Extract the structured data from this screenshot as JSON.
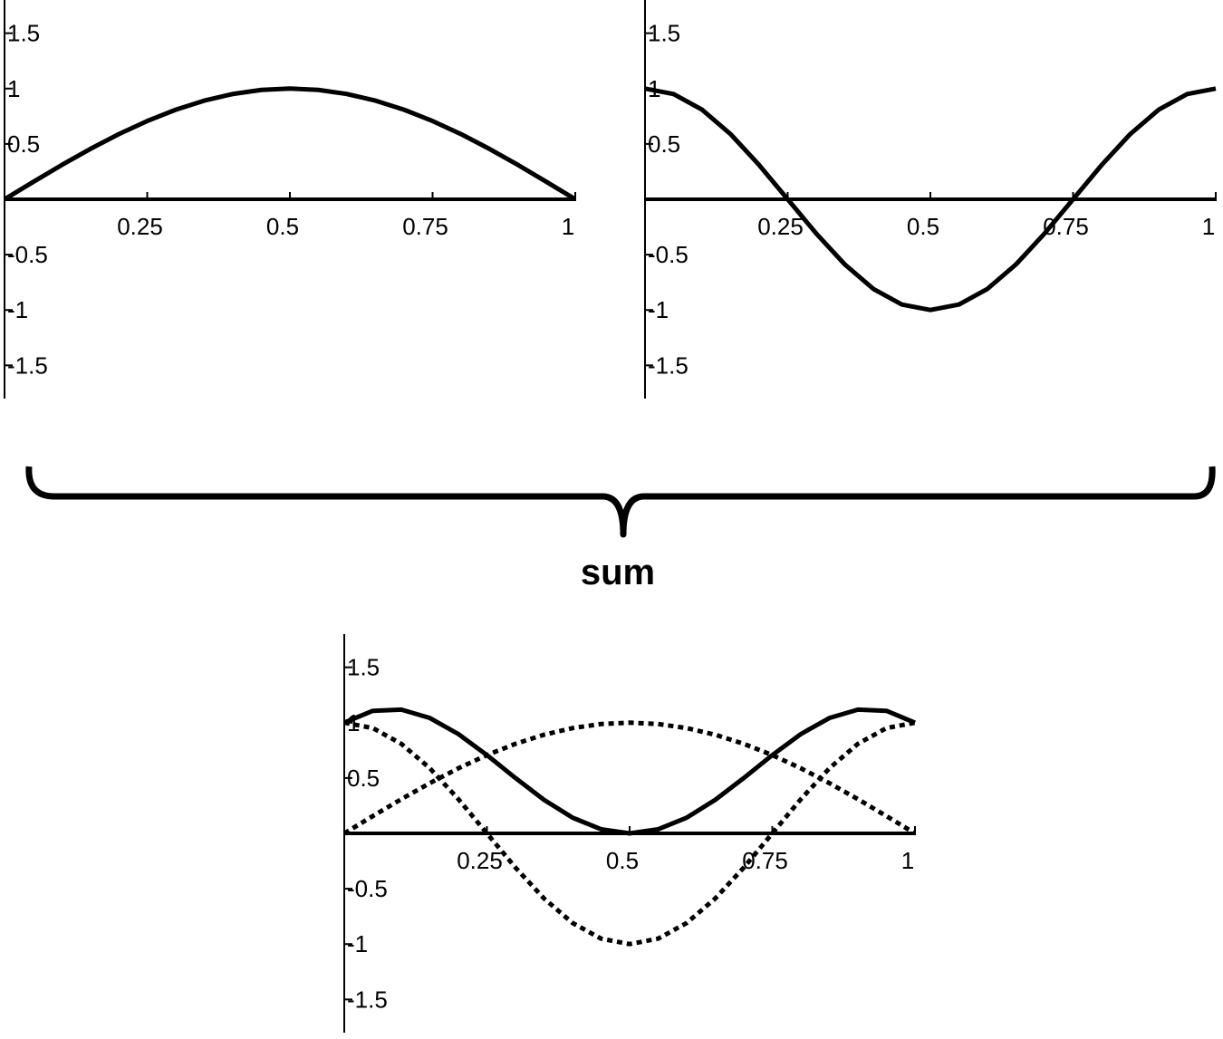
{
  "chart_data": [
    {
      "type": "line",
      "x": [
        0,
        0.05,
        0.1,
        0.15,
        0.2,
        0.25,
        0.3,
        0.35,
        0.4,
        0.45,
        0.5,
        0.55,
        0.6,
        0.65,
        0.7,
        0.75,
        0.8,
        0.85,
        0.9,
        0.95,
        1
      ],
      "series": [
        {
          "color": "#000000",
          "line_style": "solid",
          "values": [
            0,
            0.156,
            0.309,
            0.454,
            0.588,
            0.707,
            0.809,
            0.891,
            0.951,
            0.988,
            1,
            0.988,
            0.951,
            0.891,
            0.809,
            0.707,
            0.588,
            0.454,
            0.309,
            0.156,
            0
          ]
        }
      ],
      "xlim": [
        0,
        1
      ],
      "ylim": [
        -1.8,
        1.8
      ],
      "xticks": [
        0.25,
        0.5,
        0.75,
        1
      ],
      "yticks": [
        -1.5,
        -1,
        -0.5,
        0.5,
        1,
        1.5
      ]
    },
    {
      "type": "line",
      "x": [
        0,
        0.05,
        0.1,
        0.15,
        0.2,
        0.25,
        0.3,
        0.35,
        0.4,
        0.45,
        0.5,
        0.55,
        0.6,
        0.65,
        0.7,
        0.75,
        0.8,
        0.85,
        0.9,
        0.95,
        1
      ],
      "series": [
        {
          "color": "#000000",
          "line_style": "solid",
          "values": [
            1,
            0.951,
            0.809,
            0.588,
            0.309,
            0,
            -0.309,
            -0.588,
            -0.809,
            -0.951,
            -1,
            -0.951,
            -0.809,
            -0.588,
            -0.309,
            0,
            0.309,
            0.588,
            0.809,
            0.951,
            1
          ]
        }
      ],
      "xlim": [
        0,
        1
      ],
      "ylim": [
        -1.8,
        1.8
      ],
      "xticks": [
        0.25,
        0.5,
        0.75,
        1
      ],
      "yticks": [
        -1.5,
        -1,
        -0.5,
        0.5,
        1,
        1.5
      ]
    },
    {
      "type": "line",
      "x": [
        0,
        0.05,
        0.1,
        0.15,
        0.2,
        0.25,
        0.3,
        0.35,
        0.4,
        0.45,
        0.5,
        0.55,
        0.6,
        0.65,
        0.7,
        0.75,
        0.8,
        0.85,
        0.9,
        0.95,
        1
      ],
      "series": [
        {
          "color": "#000000",
          "line_style": "solid",
          "values": [
            1,
            1.107,
            1.118,
            1.042,
            0.897,
            0.707,
            0.5,
            0.303,
            0.142,
            0.037,
            0,
            0.037,
            0.142,
            0.303,
            0.5,
            0.707,
            0.897,
            1.042,
            1.118,
            1.107,
            1
          ]
        },
        {
          "color": "#000000",
          "line_style": "dotted",
          "values": [
            0,
            0.156,
            0.309,
            0.454,
            0.588,
            0.707,
            0.809,
            0.891,
            0.951,
            0.988,
            1,
            0.988,
            0.951,
            0.891,
            0.809,
            0.707,
            0.588,
            0.454,
            0.309,
            0.156,
            0
          ]
        },
        {
          "color": "#000000",
          "line_style": "dotted",
          "values": [
            1,
            0.951,
            0.809,
            0.588,
            0.309,
            0,
            -0.309,
            -0.588,
            -0.809,
            -0.951,
            -1,
            -0.951,
            -0.809,
            -0.588,
            -0.309,
            0,
            0.309,
            0.588,
            0.809,
            0.951,
            1
          ]
        }
      ],
      "xlim": [
        0,
        1
      ],
      "ylim": [
        -1.8,
        1.8
      ],
      "xticks": [
        0.25,
        0.5,
        0.75,
        1
      ],
      "yticks": [
        -1.5,
        -1,
        -0.5,
        0.5,
        1,
        1.5
      ]
    }
  ],
  "label": "sum"
}
